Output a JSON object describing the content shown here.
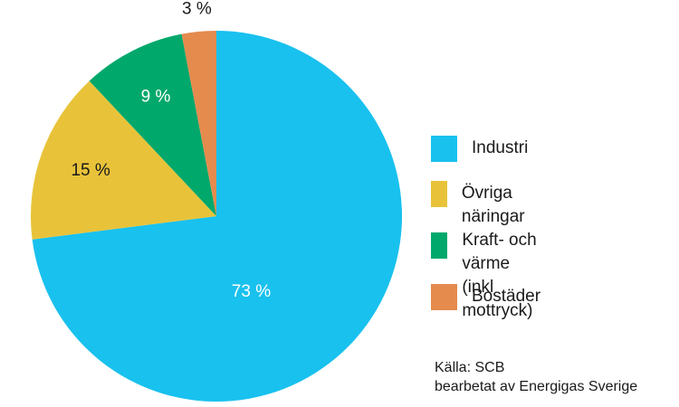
{
  "chart_data": {
    "type": "pie",
    "title": "",
    "slices": [
      {
        "name": "Industri",
        "value": 73,
        "label": "73 %",
        "color": "#19C1EE",
        "label_color": "#ffffff"
      },
      {
        "name": "Övriga näringar",
        "value": 15,
        "label": "15 %",
        "color": "#E8C33A",
        "label_color": "#1a1a1a"
      },
      {
        "name": "Kraft- och värme\n(inkl mottryck)",
        "value": 9,
        "label": "9 %",
        "color": "#00A86B",
        "label_color": "#ffffff"
      },
      {
        "name": "Bostäder",
        "value": 3,
        "label": "3 %",
        "color": "#E58B4E",
        "label_color": "#1a1a1a"
      }
    ],
    "legend_position": "right"
  },
  "source": {
    "line1": "Källa: SCB",
    "line2": "bearbetat av Energigas Sverige"
  }
}
